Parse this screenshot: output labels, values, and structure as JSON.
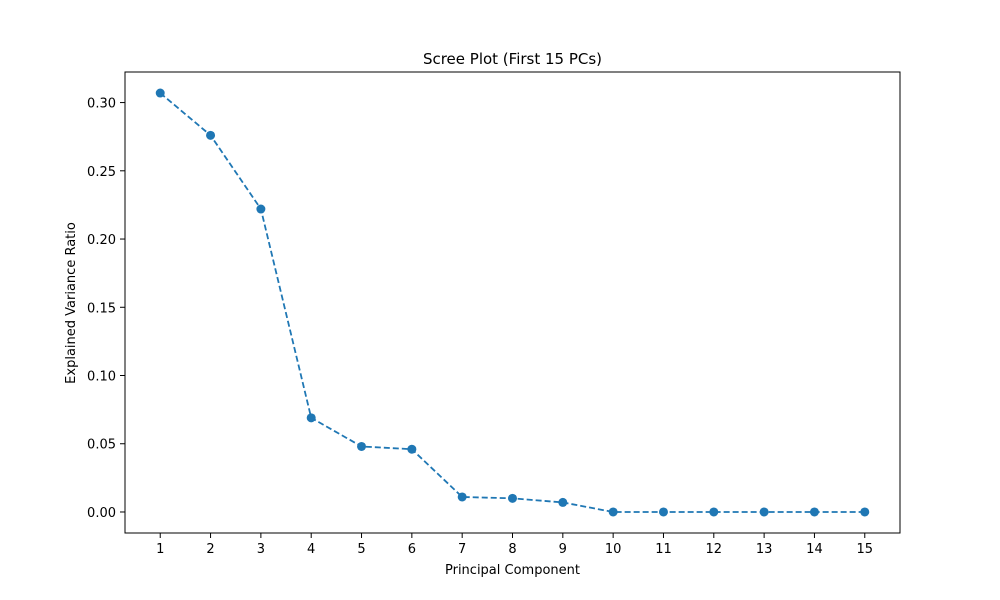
{
  "chart_data": {
    "type": "line",
    "title": "Scree Plot (First 15 PCs)",
    "xlabel": "Principal Component",
    "ylabel": "Explained Variance Ratio",
    "x": [
      1,
      2,
      3,
      4,
      5,
      6,
      7,
      8,
      9,
      10,
      11,
      12,
      13,
      14,
      15
    ],
    "series": [
      {
        "values": [
          0.307,
          0.276,
          0.222,
          0.069,
          0.048,
          0.046,
          0.011,
          0.01,
          0.007,
          0.0,
          0.0,
          0.0,
          0.0,
          0.0,
          0.0
        ]
      }
    ],
    "xticks": [
      "1",
      "2",
      "3",
      "4",
      "5",
      "6",
      "7",
      "8",
      "9",
      "10",
      "11",
      "12",
      "13",
      "14",
      "15"
    ],
    "yticks": [
      "0.00",
      "0.05",
      "0.10",
      "0.15",
      "0.20",
      "0.25",
      "0.30"
    ],
    "ytick_values": [
      0.0,
      0.05,
      0.1,
      0.15,
      0.2,
      0.25,
      0.3
    ],
    "xlim": [
      0.3,
      15.7
    ],
    "ylim": [
      -0.0154,
      0.3224
    ],
    "marker": "circle",
    "line_style": "dashed",
    "grid": false,
    "legend": "none",
    "colors": {
      "series": "#1f77b4",
      "axis": "#000000",
      "background": "#ffffff"
    }
  }
}
